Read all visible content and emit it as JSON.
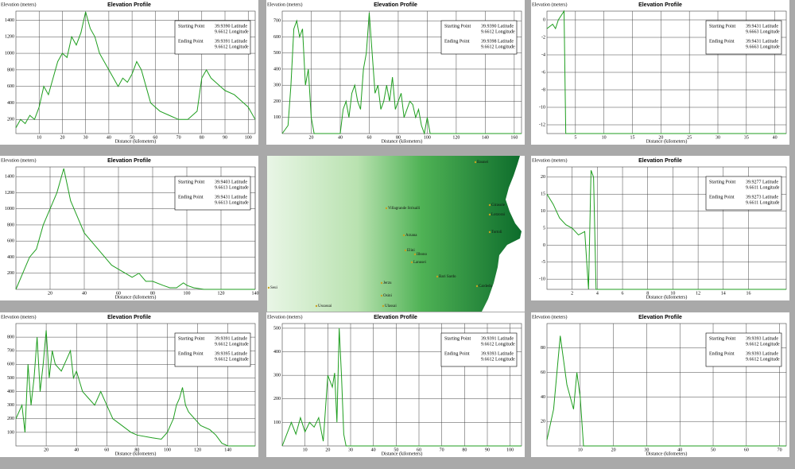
{
  "chart_data": [
    {
      "type": "line",
      "title": "Elevation Profile",
      "y_label": "Elevation (meters)",
      "x_label": "Distance (kilometers)",
      "color": "#1f9e1f",
      "grid": true,
      "xlim": [
        0,
        103
      ],
      "ylim": [
        30,
        1510
      ],
      "xticks": [
        10,
        20,
        30,
        40,
        50,
        60,
        70,
        80,
        90,
        100
      ],
      "yticks": [
        200,
        400,
        600,
        800,
        1000,
        1200,
        1400
      ],
      "legend": {
        "start_label": "Starting Point",
        "start_lat": "39.9390 Latitude",
        "start_lon": "9.6612 Longitude",
        "end_label": "Ending Point",
        "end_lat": "39.9391 Latitude",
        "end_lon": "9.6612 Longitude"
      },
      "x": [
        0,
        2,
        4,
        6,
        8,
        10,
        12,
        14,
        16,
        18,
        20,
        22,
        24,
        26,
        28,
        30,
        32,
        34,
        36,
        38,
        40,
        42,
        44,
        46,
        48,
        50,
        52,
        54,
        56,
        58,
        60,
        62,
        66,
        70,
        74,
        78,
        80,
        82,
        84,
        86,
        88,
        90,
        94,
        96,
        98,
        100,
        103
      ],
      "values": [
        100,
        200,
        150,
        250,
        200,
        350,
        600,
        500,
        700,
        900,
        1000,
        950,
        1200,
        1100,
        1250,
        1500,
        1300,
        1200,
        1000,
        900,
        800,
        700,
        600,
        700,
        650,
        750,
        900,
        800,
        600,
        400,
        350,
        300,
        250,
        200,
        200,
        300,
        700,
        800,
        700,
        650,
        600,
        550,
        500,
        450,
        400,
        350,
        200
      ]
    },
    {
      "type": "line",
      "title": "Elevation Profile",
      "y_label": "Elevation (meters)",
      "x_label": "Distance (kilometers)",
      "color": "#1f9e1f",
      "grid": true,
      "xlim": [
        0,
        165
      ],
      "ylim": [
        0,
        760
      ],
      "xticks": [
        20,
        40,
        60,
        80,
        100,
        120,
        140,
        160
      ],
      "yticks": [
        100,
        200,
        300,
        400,
        500,
        600,
        700
      ],
      "legend": {
        "start_label": "Starting Point",
        "start_lat": "39.9390 Latitude",
        "start_lon": "9.6612 Longitude",
        "end_label": "Ending Point",
        "end_lat": "39.9398 Latitude",
        "end_lon": "9.6612 Longitude"
      },
      "x": [
        0,
        4,
        6,
        8,
        10,
        12,
        14,
        16,
        18,
        20,
        22,
        40,
        42,
        44,
        46,
        48,
        50,
        52,
        54,
        56,
        58,
        60,
        62,
        64,
        66,
        68,
        70,
        72,
        74,
        76,
        78,
        80,
        82,
        84,
        86,
        88,
        90,
        92,
        94,
        96,
        98,
        100,
        102,
        165
      ],
      "values": [
        0,
        50,
        300,
        650,
        700,
        600,
        650,
        300,
        400,
        100,
        0,
        0,
        150,
        200,
        100,
        250,
        300,
        200,
        150,
        400,
        500,
        750,
        500,
        250,
        300,
        150,
        200,
        300,
        200,
        350,
        150,
        200,
        250,
        100,
        150,
        200,
        180,
        100,
        150,
        50,
        0,
        100,
        0,
        0
      ]
    },
    {
      "type": "line",
      "title": "Elevation Profile",
      "y_label": "Elevation (meters)",
      "x_label": "Distance (kilometers)",
      "color": "#1f9e1f",
      "grid": true,
      "xlim": [
        0,
        42
      ],
      "ylim": [
        -13,
        1
      ],
      "xticks": [
        5,
        10,
        15,
        20,
        25,
        30,
        35,
        40
      ],
      "yticks": [
        -12,
        -10,
        -8,
        -6,
        -4,
        -2,
        0
      ],
      "legend": {
        "start_label": "Starting Point",
        "start_lat": "39.9431 Latitude",
        "start_lon": "9.6663 Longitude",
        "end_label": "Ending Point",
        "end_lat": "39.9431 Latitude",
        "end_lon": "9.6663 Longitude"
      },
      "x": [
        0,
        1,
        1.5,
        2,
        2.5,
        3,
        3.3,
        42
      ],
      "values": [
        -1,
        -0.5,
        -1,
        0,
        0.5,
        1,
        -13,
        -13
      ]
    },
    {
      "type": "line",
      "title": "Elevation Profile",
      "y_label": "Elevation (meters)",
      "x_label": "Distance (kilometers)",
      "color": "#1f9e1f",
      "grid": true,
      "xlim": [
        0,
        140
      ],
      "ylim": [
        0,
        1520
      ],
      "xticks": [
        20,
        40,
        60,
        80,
        100,
        120,
        140
      ],
      "yticks": [
        200,
        400,
        600,
        800,
        1000,
        1200,
        1400
      ],
      "legend": {
        "start_label": "Starting Point",
        "start_lat": "39.9403 Latitude",
        "start_lon": "9.6613 Longitude",
        "end_label": "Ending Point",
        "end_lat": "39.9431 Latitude",
        "end_lon": "9.6613 Longitude"
      },
      "x": [
        0,
        4,
        8,
        12,
        16,
        20,
        24,
        28,
        30,
        32,
        34,
        36,
        38,
        40,
        44,
        48,
        52,
        56,
        60,
        64,
        68,
        72,
        76,
        80,
        86,
        90,
        94,
        98,
        100,
        104,
        110,
        140
      ],
      "values": [
        0,
        200,
        400,
        500,
        800,
        1000,
        1200,
        1500,
        1300,
        1100,
        1000,
        900,
        800,
        700,
        600,
        500,
        400,
        300,
        250,
        200,
        150,
        200,
        100,
        100,
        50,
        20,
        20,
        80,
        50,
        20,
        0,
        0
      ]
    },
    {
      "type": "line",
      "title": "Elevation Profile",
      "y_label": "Elevation (meters)",
      "x_label": "Distance (kilometers)",
      "color": "#1f9e1f",
      "grid": true,
      "xlim": [
        0,
        19
      ],
      "ylim": [
        -13,
        23
      ],
      "xticks": [
        2,
        4,
        6,
        8,
        10,
        12,
        14,
        16
      ],
      "yticks": [
        -10,
        -5,
        0,
        5,
        10,
        15,
        20
      ],
      "legend": {
        "start_label": "Starting Point",
        "start_lat": "39.9277 Latitude",
        "start_lon": "9.6611 Longitude",
        "end_label": "Ending Point",
        "end_lat": "39.9273 Latitude",
        "end_lon": "9.6611 Longitude"
      },
      "x": [
        0,
        0.5,
        1,
        1.5,
        2,
        2.5,
        3,
        3.3,
        3.5,
        3.7,
        3.9,
        19
      ],
      "values": [
        15,
        12,
        8,
        6,
        5,
        3,
        4,
        -13,
        22,
        20,
        -13,
        -13
      ]
    },
    {
      "type": "line",
      "title": "Elevation Profile",
      "y_label": "Elevation (meters)",
      "x_label": "Distance (kilometers)",
      "color": "#1f9e1f",
      "grid": true,
      "xlim": [
        0,
        158
      ],
      "ylim": [
        0,
        900
      ],
      "xticks": [
        20,
        40,
        60,
        80,
        100,
        120,
        140
      ],
      "yticks": [
        100,
        200,
        300,
        400,
        500,
        600,
        700,
        800
      ],
      "legend": {
        "start_label": "Starting Point",
        "start_lat": "39.9391 Latitude",
        "start_lon": "9.6612 Longitude",
        "end_label": "Ending Point",
        "end_lat": "39.9395 Latitude",
        "end_lon": "9.6612 Longitude"
      },
      "x": [
        0,
        4,
        6,
        8,
        10,
        12,
        14,
        16,
        18,
        20,
        22,
        24,
        26,
        30,
        34,
        36,
        38,
        40,
        44,
        48,
        52,
        56,
        60,
        64,
        70,
        76,
        80,
        90,
        96,
        100,
        104,
        106,
        108,
        110,
        112,
        114,
        118,
        122,
        128,
        132,
        136,
        140,
        158
      ],
      "values": [
        200,
        300,
        100,
        600,
        300,
        500,
        800,
        400,
        600,
        850,
        500,
        700,
        600,
        550,
        650,
        700,
        500,
        550,
        400,
        350,
        300,
        400,
        300,
        200,
        150,
        100,
        80,
        60,
        50,
        100,
        200,
        300,
        350,
        430,
        300,
        250,
        200,
        150,
        120,
        80,
        20,
        0,
        0
      ]
    },
    {
      "type": "line",
      "title": "Elevation Profile",
      "y_label": "Elevation (meters)",
      "x_label": "Distance (kilometers)",
      "color": "#1f9e1f",
      "grid": true,
      "xlim": [
        0,
        105
      ],
      "ylim": [
        0,
        520
      ],
      "xticks": [
        10,
        20,
        30,
        40,
        50,
        60,
        70,
        80,
        90,
        100
      ],
      "yticks": [
        100,
        200,
        300,
        400,
        500
      ],
      "legend": {
        "start_label": "Starting Point",
        "start_lat": "39.9391 Latitude",
        "start_lon": "9.6612 Longitude",
        "end_label": "Ending Point",
        "end_lat": "39.9393 Latitude",
        "end_lon": "9.6612 Longitude"
      },
      "x": [
        0,
        4,
        6,
        8,
        10,
        12,
        14,
        16,
        18,
        20,
        22,
        23,
        24,
        25,
        26,
        27,
        28,
        105
      ],
      "values": [
        0,
        100,
        50,
        120,
        60,
        100,
        80,
        120,
        20,
        300,
        250,
        310,
        100,
        500,
        300,
        50,
        0,
        0
      ]
    },
    {
      "type": "line",
      "title": "Elevation Profile",
      "y_label": "Elevation (meters)",
      "x_label": "Distance (kilometers)",
      "color": "#1f9e1f",
      "grid": true,
      "xlim": [
        0,
        72
      ],
      "ylim": [
        0,
        100
      ],
      "xticks": [
        10,
        20,
        30,
        40,
        50,
        60,
        70
      ],
      "yticks": [
        20,
        40,
        60,
        80
      ],
      "legend": {
        "start_label": "Starting Point",
        "start_lat": "39.9393 Latitude",
        "start_lon": "9.6612 Longitude",
        "end_label": "Ending Point",
        "end_lat": "39.9393 Latitude",
        "end_lon": "9.6612 Longitude"
      },
      "x": [
        0,
        2,
        3,
        4,
        5,
        6,
        7,
        8,
        9,
        10,
        11,
        72
      ],
      "values": [
        5,
        30,
        60,
        90,
        70,
        50,
        40,
        30,
        60,
        40,
        0,
        0
      ]
    }
  ],
  "map": {
    "places": [
      "Baunei",
      "Villagrande Strisaili",
      "Girasole",
      "Lotzorai",
      "Tortolì",
      "Arzana",
      "Elini",
      "Ilbono",
      "Lanusei",
      "Bari Sardo",
      "Cardedu",
      "Jerzu",
      "Osini",
      "Ulassai",
      "Seui",
      "Ussassai"
    ]
  }
}
